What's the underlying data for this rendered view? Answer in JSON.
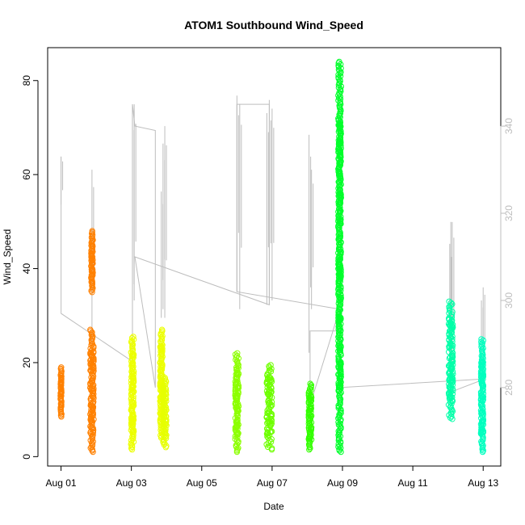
{
  "chart_data": {
    "type": "scatter",
    "title": "ATOM1 Southbound Wind_Speed",
    "xlabel": "Date",
    "ylabel": "Wind_Speed",
    "x_tick_labels": [
      "Aug 01",
      "Aug 03",
      "Aug 05",
      "Aug 07",
      "Aug 09",
      "Aug 11",
      "Aug 13"
    ],
    "x_tick_days": [
      1,
      3,
      5,
      7,
      9,
      11,
      13
    ],
    "xlim_days": [
      0.62,
      13.5
    ],
    "ylim": [
      -2,
      87
    ],
    "y_ticks": [
      0,
      20,
      40,
      60,
      80
    ],
    "y2_ticks": [
      280,
      300,
      320,
      340
    ],
    "y2lim": [
      262,
      358
    ],
    "grid": false,
    "colors": {
      "secondary_line": "#bdbdbd",
      "right_axis": "#bdbdbd"
    },
    "wind_speed_clusters": [
      {
        "day": 1.0,
        "width": 0.03,
        "min": 8.5,
        "max": 19,
        "color": "#ff8000"
      },
      {
        "day": 1.88,
        "width": 0.05,
        "min": 35,
        "max": 48,
        "color": "#ff8000"
      },
      {
        "day": 1.88,
        "width": 0.1,
        "min": 1,
        "max": 27,
        "color": "#ff8000"
      },
      {
        "day": 3.03,
        "width": 0.08,
        "min": 1.5,
        "max": 25.5,
        "color": "#ecff00"
      },
      {
        "day": 3.85,
        "width": 0.07,
        "min": 4,
        "max": 27,
        "color": "#ecff00"
      },
      {
        "day": 3.95,
        "width": 0.1,
        "min": 2,
        "max": 17,
        "color": "#e6ff00"
      },
      {
        "day": 6.0,
        "width": 0.1,
        "min": 1,
        "max": 22,
        "color": "#8cff00"
      },
      {
        "day": 6.92,
        "width": 0.16,
        "min": 1.5,
        "max": 19.5,
        "color": "#6eff00"
      },
      {
        "day": 8.08,
        "width": 0.08,
        "min": 1.5,
        "max": 15.5,
        "color": "#33ff00"
      },
      {
        "day": 8.92,
        "width": 0.08,
        "min": 1,
        "max": 84,
        "color": "#00ff2b"
      },
      {
        "day": 12.08,
        "width": 0.12,
        "min": 8,
        "max": 33,
        "color": "#00ffa8"
      },
      {
        "day": 12.97,
        "width": 0.07,
        "min": 1,
        "max": 25,
        "color": "#00ffbf"
      }
    ],
    "secondary_series": [
      {
        "day": 1.0,
        "value": 333
      },
      {
        "day": 1.0,
        "value": 297
      },
      {
        "day": 3.03,
        "value": 286
      },
      {
        "day": 3.03,
        "value": 345
      },
      {
        "day": 3.1,
        "value": 340
      },
      {
        "day": 3.68,
        "value": 339
      },
      {
        "day": 3.68,
        "value": 280
      },
      {
        "day": 3.1,
        "value": 310
      },
      {
        "day": 6.92,
        "value": 299
      },
      {
        "day": 6.92,
        "value": 345
      },
      {
        "day": 6.0,
        "value": 345
      },
      {
        "day": 6.0,
        "value": 302
      },
      {
        "day": 8.92,
        "value": 298
      },
      {
        "day": 8.08,
        "value": 276
      },
      {
        "day": 8.08,
        "value": 293
      },
      {
        "day": 8.92,
        "value": 293
      },
      {
        "day": 8.92,
        "value": 280
      },
      {
        "day": 13.05,
        "value": 282
      },
      {
        "day": 12.08,
        "value": 279
      },
      {
        "day": 12.08,
        "value": 318
      }
    ],
    "secondary_spikes": [
      {
        "day": 1.0,
        "low": 322,
        "high": 333
      },
      {
        "day": 1.88,
        "low": 290,
        "high": 330
      },
      {
        "day": 3.03,
        "low": 286,
        "high": 345
      },
      {
        "day": 3.08,
        "low": 300,
        "high": 345
      },
      {
        "day": 3.85,
        "low": 296,
        "high": 325
      },
      {
        "day": 3.9,
        "low": 298,
        "high": 336
      },
      {
        "day": 3.95,
        "low": 296,
        "high": 340
      },
      {
        "day": 6.0,
        "low": 302,
        "high": 347
      },
      {
        "day": 6.08,
        "low": 298,
        "high": 345
      },
      {
        "day": 6.85,
        "low": 299,
        "high": 343
      },
      {
        "day": 6.92,
        "low": 299,
        "high": 346
      },
      {
        "day": 7.0,
        "low": 300,
        "high": 344
      },
      {
        "day": 8.05,
        "low": 288,
        "high": 338
      },
      {
        "day": 8.12,
        "low": 298,
        "high": 330
      },
      {
        "day": 12.05,
        "low": 283,
        "high": 313
      },
      {
        "day": 12.12,
        "low": 282,
        "high": 318
      },
      {
        "day": 12.95,
        "low": 284,
        "high": 300
      },
      {
        "day": 13.0,
        "low": 286,
        "high": 303
      }
    ]
  }
}
